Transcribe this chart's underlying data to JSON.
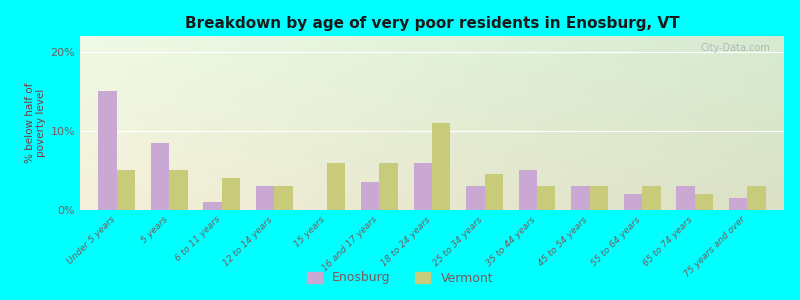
{
  "title": "Breakdown by age of very poor residents in Enosburg, VT",
  "ylabel": "% below half of\npoverty level",
  "categories": [
    "Under 5 years",
    "5 years",
    "6 to 11 years",
    "12 to 14 years",
    "15 years",
    "16 and 17 years",
    "18 to 24 years",
    "25 to 34 years",
    "35 to 44 years",
    "45 to 54 years",
    "55 to 64 years",
    "65 to 74 years",
    "75 years and over"
  ],
  "enosburg": [
    15.0,
    8.5,
    1.0,
    3.0,
    0.0,
    3.5,
    6.0,
    3.0,
    5.0,
    3.0,
    2.0,
    3.0,
    1.5
  ],
  "vermont": [
    5.0,
    5.0,
    4.0,
    3.0,
    6.0,
    6.0,
    11.0,
    4.5,
    3.0,
    3.0,
    3.0,
    2.0,
    3.0
  ],
  "enosburg_color": "#c9a8d4",
  "vermont_color": "#c8cc7a",
  "background_color": "#00ffff",
  "plot_bg_topleft": "#c8ddb0",
  "plot_bg_topright": "#f0f8e8",
  "plot_bg_bottomleft": "#d5e8b8",
  "plot_bg_bottomright": "#f5faf0",
  "title_color": "#1a1a1a",
  "axis_label_color": "#7a3a3a",
  "tick_color": "#7a5a5a",
  "ylim": [
    0,
    22
  ],
  "yticks": [
    0,
    10,
    20
  ],
  "ytick_labels": [
    "0%",
    "10%",
    "20%"
  ],
  "bar_width": 0.35,
  "watermark": "City-Data.com"
}
